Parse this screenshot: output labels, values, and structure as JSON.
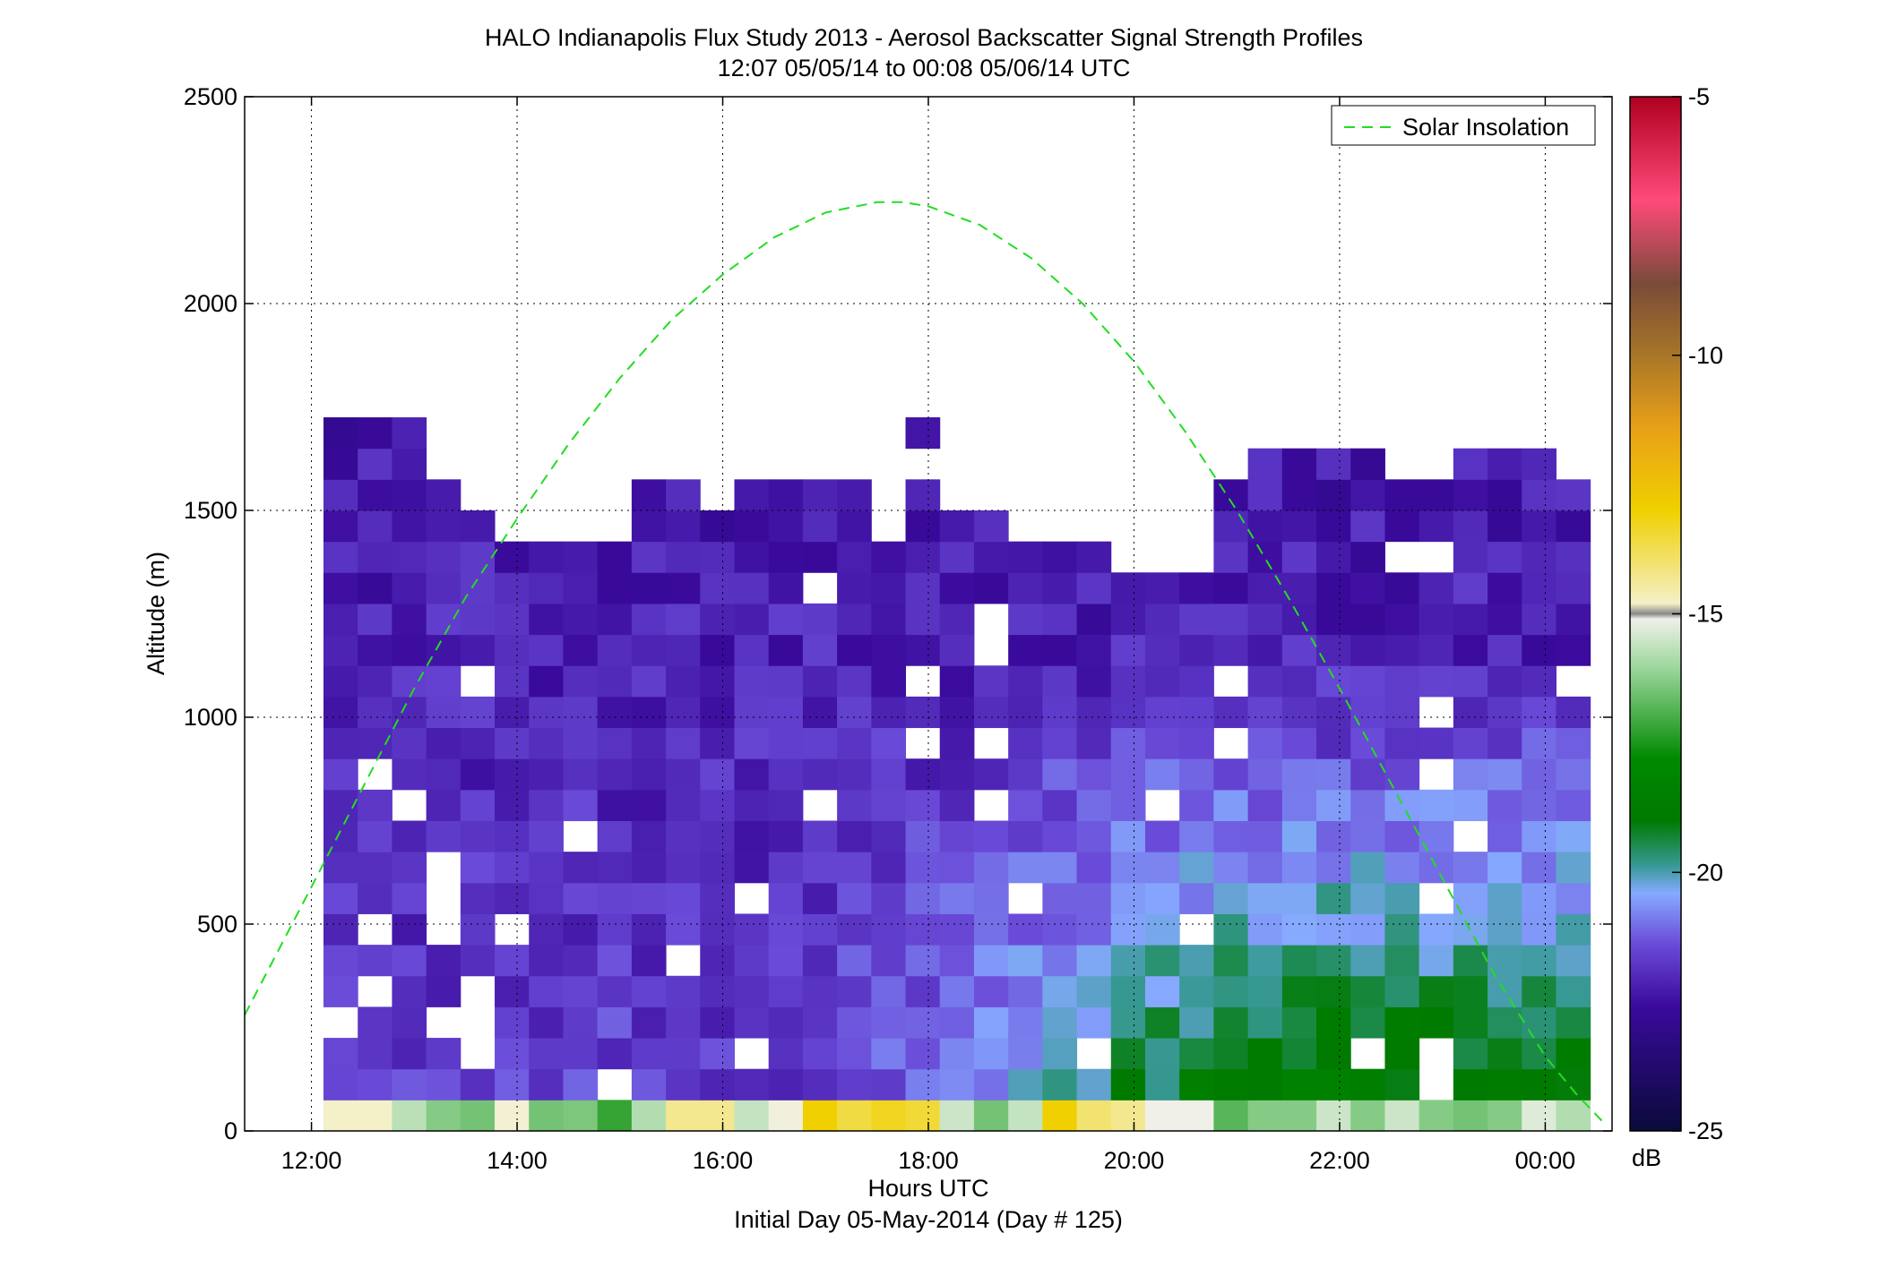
{
  "chart_data": {
    "type": "heatmap",
    "title": "HALO Indianapolis Flux Study 2013 - Aerosol Backscatter Signal Strength Profiles",
    "subtitle": "12:07 05/05/14 to 00:08 05/06/14  UTC",
    "xlabel": "Hours UTC",
    "xlabel2": "Initial Day 05-May-2014 (Day # 125)",
    "ylabel": "Altitude (m)",
    "xlim": [
      11.35,
      24.65
    ],
    "ylim": [
      0,
      2500
    ],
    "x_ticks": [
      12,
      14,
      16,
      18,
      20,
      22,
      24
    ],
    "x_tick_labels": [
      "12:00",
      "14:00",
      "16:00",
      "18:00",
      "20:00",
      "22:00",
      "00:00"
    ],
    "y_ticks": [
      0,
      500,
      1000,
      1500,
      2000,
      2500
    ],
    "y_tick_labels": [
      "0",
      "500",
      "1000",
      "1500",
      "2000",
      "2500"
    ],
    "grid": true,
    "colorbar": {
      "range": [
        -25,
        -5
      ],
      "ticks": [
        -25,
        -20,
        -15,
        -10,
        -5
      ],
      "tick_labels": [
        "-25",
        "-20",
        "-15",
        "-10",
        "-5"
      ],
      "units": "dB"
    },
    "heatmap_bins": {
      "x_start": 12.117,
      "x_step": 0.333,
      "n_cols": 37,
      "alt_start": 75,
      "alt_step": 75,
      "n_rows": 33
    },
    "surface_row_db": [
      -14.8,
      -14.8,
      -15.7,
      -16.3,
      -16.5,
      -14.9,
      -16.5,
      -16.4,
      -17.2,
      -15.8,
      -14.3,
      -14.3,
      -15.6,
      -15.0,
      -13.0,
      -13.6,
      -13.3,
      -13.5,
      -15.5,
      -16.5,
      -15.6,
      -13.0,
      -14.0,
      -14.3,
      -15.1,
      -15.1,
      -16.8,
      -16.3,
      -16.3,
      -15.5,
      -16.3,
      -15.5,
      -16.3,
      -16.5,
      -16.3,
      -15.3,
      -15.8
    ],
    "legend": {
      "position": "top-right",
      "entries": [
        {
          "name": "Solar Insolation",
          "color": "#22dd22",
          "style": "dashed"
        }
      ]
    },
    "series": [
      {
        "name": "Solar Insolation",
        "x": [
          11.35,
          12.0,
          12.5,
          13.0,
          13.5,
          14.0,
          14.5,
          15.0,
          15.5,
          16.0,
          16.5,
          17.0,
          17.5,
          17.75,
          18.0,
          18.5,
          19.0,
          19.5,
          20.0,
          20.5,
          21.0,
          21.5,
          22.0,
          22.5,
          23.0,
          23.5,
          24.0,
          24.3,
          24.55
        ],
        "y": [
          280,
          590,
          830,
          1070,
          1290,
          1480,
          1660,
          1820,
          1960,
          2070,
          2160,
          2220,
          2245,
          2245,
          2235,
          2190,
          2110,
          2000,
          1860,
          1690,
          1500,
          1290,
          1070,
          840,
          610,
          380,
          180,
          90,
          25
        ]
      }
    ]
  }
}
